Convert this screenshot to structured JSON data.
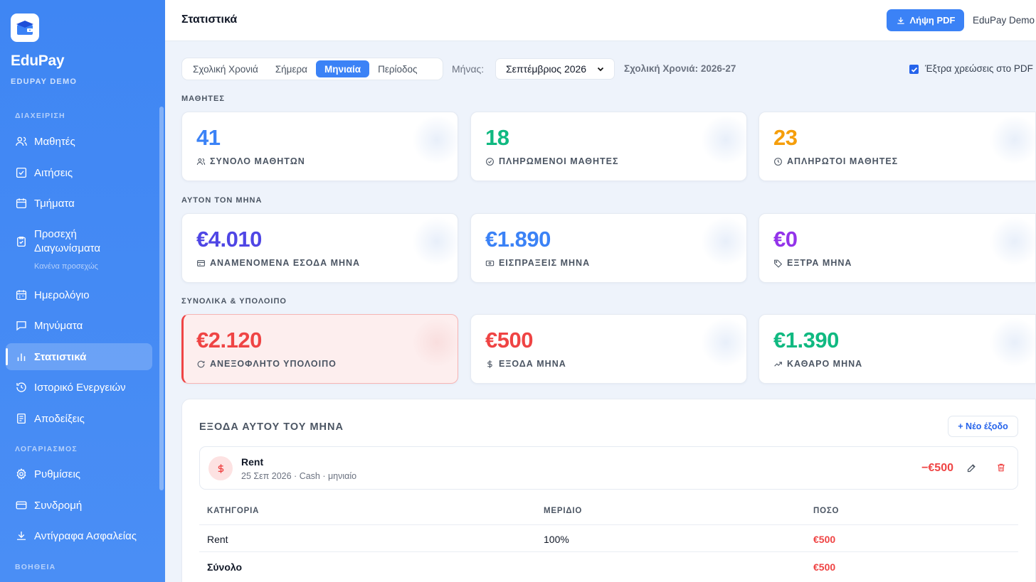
{
  "app": {
    "name": "EduPay",
    "account": "EDUPAY DEMO"
  },
  "sidebar": {
    "sections": [
      "ΔΙΑΧΕΙΡΙΣΗ",
      "ΛΟΓΑΡΙΑΣΜΟΣ",
      "ΒΟΗΘΕΙΑ"
    ],
    "items": [
      {
        "label": "Μαθητές",
        "icon": "users-icon"
      },
      {
        "label": "Αιτήσεις",
        "icon": "checklist-icon"
      },
      {
        "label": "Τμήματα",
        "icon": "calendar-icon"
      },
      {
        "label": "Προσεχή\nΔιαγωνίσματα",
        "icon": "clipboard-icon",
        "sub": "Κανένα προσεχώς"
      },
      {
        "label": "Ημερολόγιο",
        "icon": "calendar-grid-icon"
      },
      {
        "label": "Μηνύματα",
        "icon": "message-icon"
      },
      {
        "label": "Στατιστικά",
        "icon": "bar-chart-icon",
        "active": true
      },
      {
        "label": "Ιστορικό Ενεργειών",
        "icon": "history-icon"
      },
      {
        "label": "Αποδείξεις",
        "icon": "receipt-icon"
      },
      {
        "label": "Ρυθμίσεις",
        "icon": "gear-icon"
      },
      {
        "label": "Συνδρομή",
        "icon": "credit-card-icon"
      },
      {
        "label": "Αντίγραφα Ασφαλείας",
        "icon": "download-icon"
      }
    ]
  },
  "header": {
    "title": "Στατιστικά",
    "pdf_button": "Λήψη PDF",
    "user": "EduPay Demo"
  },
  "filters": {
    "tabs": [
      "Σχολική Χρονιά",
      "Σήμερα",
      "Μηνιαία",
      "Περίοδος"
    ],
    "active_tab": "Μηνιαία",
    "month_label": "Μήνας:",
    "month_value": "Σεπτέμβριος 2026",
    "school_year": "Σχολική Χρονιά: 2026-27",
    "extra_charges_label": "Έξτρα χρεώσεις στο PDF",
    "extra_charges_checked": true
  },
  "sections": {
    "students": {
      "title": "ΜΑΘΗΤΕΣ",
      "cards": [
        {
          "value": "41",
          "label": "ΣΥΝΟΛΟ ΜΑΘΗΤΩΝ",
          "color": "#3b82f6",
          "icon": "users-icon"
        },
        {
          "value": "18",
          "label": "ΠΛΗΡΩΜΕΝΟΙ ΜΑΘΗΤΕΣ",
          "color": "#10b981",
          "icon": "check-circle-icon"
        },
        {
          "value": "23",
          "label": "ΑΠΛΗΡΩΤΟΙ ΜΑΘΗΤΕΣ",
          "color": "#f59e0b",
          "icon": "clock-icon"
        }
      ]
    },
    "month": {
      "title": "ΑΥΤΟΝ ΤΟΝ ΜΗΝΑ",
      "cards": [
        {
          "value": "€4.010",
          "label": "ΑΝΑΜΕΝΟΜΕΝΑ ΕΣΟΔΑ ΜΗΝΑ",
          "color": "#4f46e5",
          "icon": "wallet-icon"
        },
        {
          "value": "€1.890",
          "label": "ΕΙΣΠΡΑΞΕΙΣ ΜΗΝΑ",
          "color": "#3b82f6",
          "icon": "banknote-icon"
        },
        {
          "value": "€0",
          "label": "ΕΞΤΡΑ ΜΗΝΑ",
          "color": "#9333ea",
          "icon": "tag-icon"
        }
      ]
    },
    "totals": {
      "title": "ΣΥΝΟΛΙΚΑ & ΥΠΟΛΟΙΠΟ",
      "cards": [
        {
          "value": "€2.120",
          "label": "ΑΝΕΞΟΦΛΗΤΟ ΥΠΟΛΟΙΠΟ",
          "color": "#ef4444",
          "icon": "refresh-icon"
        },
        {
          "value": "€500",
          "label": "ΕΞΟΔΑ ΜΗΝΑ",
          "color": "#ef4444",
          "icon": "dollar-icon"
        },
        {
          "value": "€1.390",
          "label": "ΚΑΘΑΡΟ ΜΗΝΑ",
          "color": "#10b981",
          "icon": "trending-up-icon"
        }
      ]
    }
  },
  "expenses": {
    "title": "ΕΞΟΔΑ ΑΥΤΟΥ ΤΟΥ ΜΗΝΑ",
    "new_button": "+ Νέο έξοδο",
    "item": {
      "name": "Rent",
      "meta": "25 Σεπ 2026 · Cash · μηνιαίο",
      "amount": "−€500"
    },
    "table": {
      "headers": [
        "ΚΑΤΗΓΟΡΙΑ",
        "ΜΕΡΙΔΙΟ",
        "ΠΟΣΟ"
      ],
      "rows": [
        {
          "category": "Rent",
          "share": "100%",
          "amount": "€500"
        },
        {
          "category": "Σύνολο",
          "share": "",
          "amount": "€500"
        }
      ]
    }
  }
}
